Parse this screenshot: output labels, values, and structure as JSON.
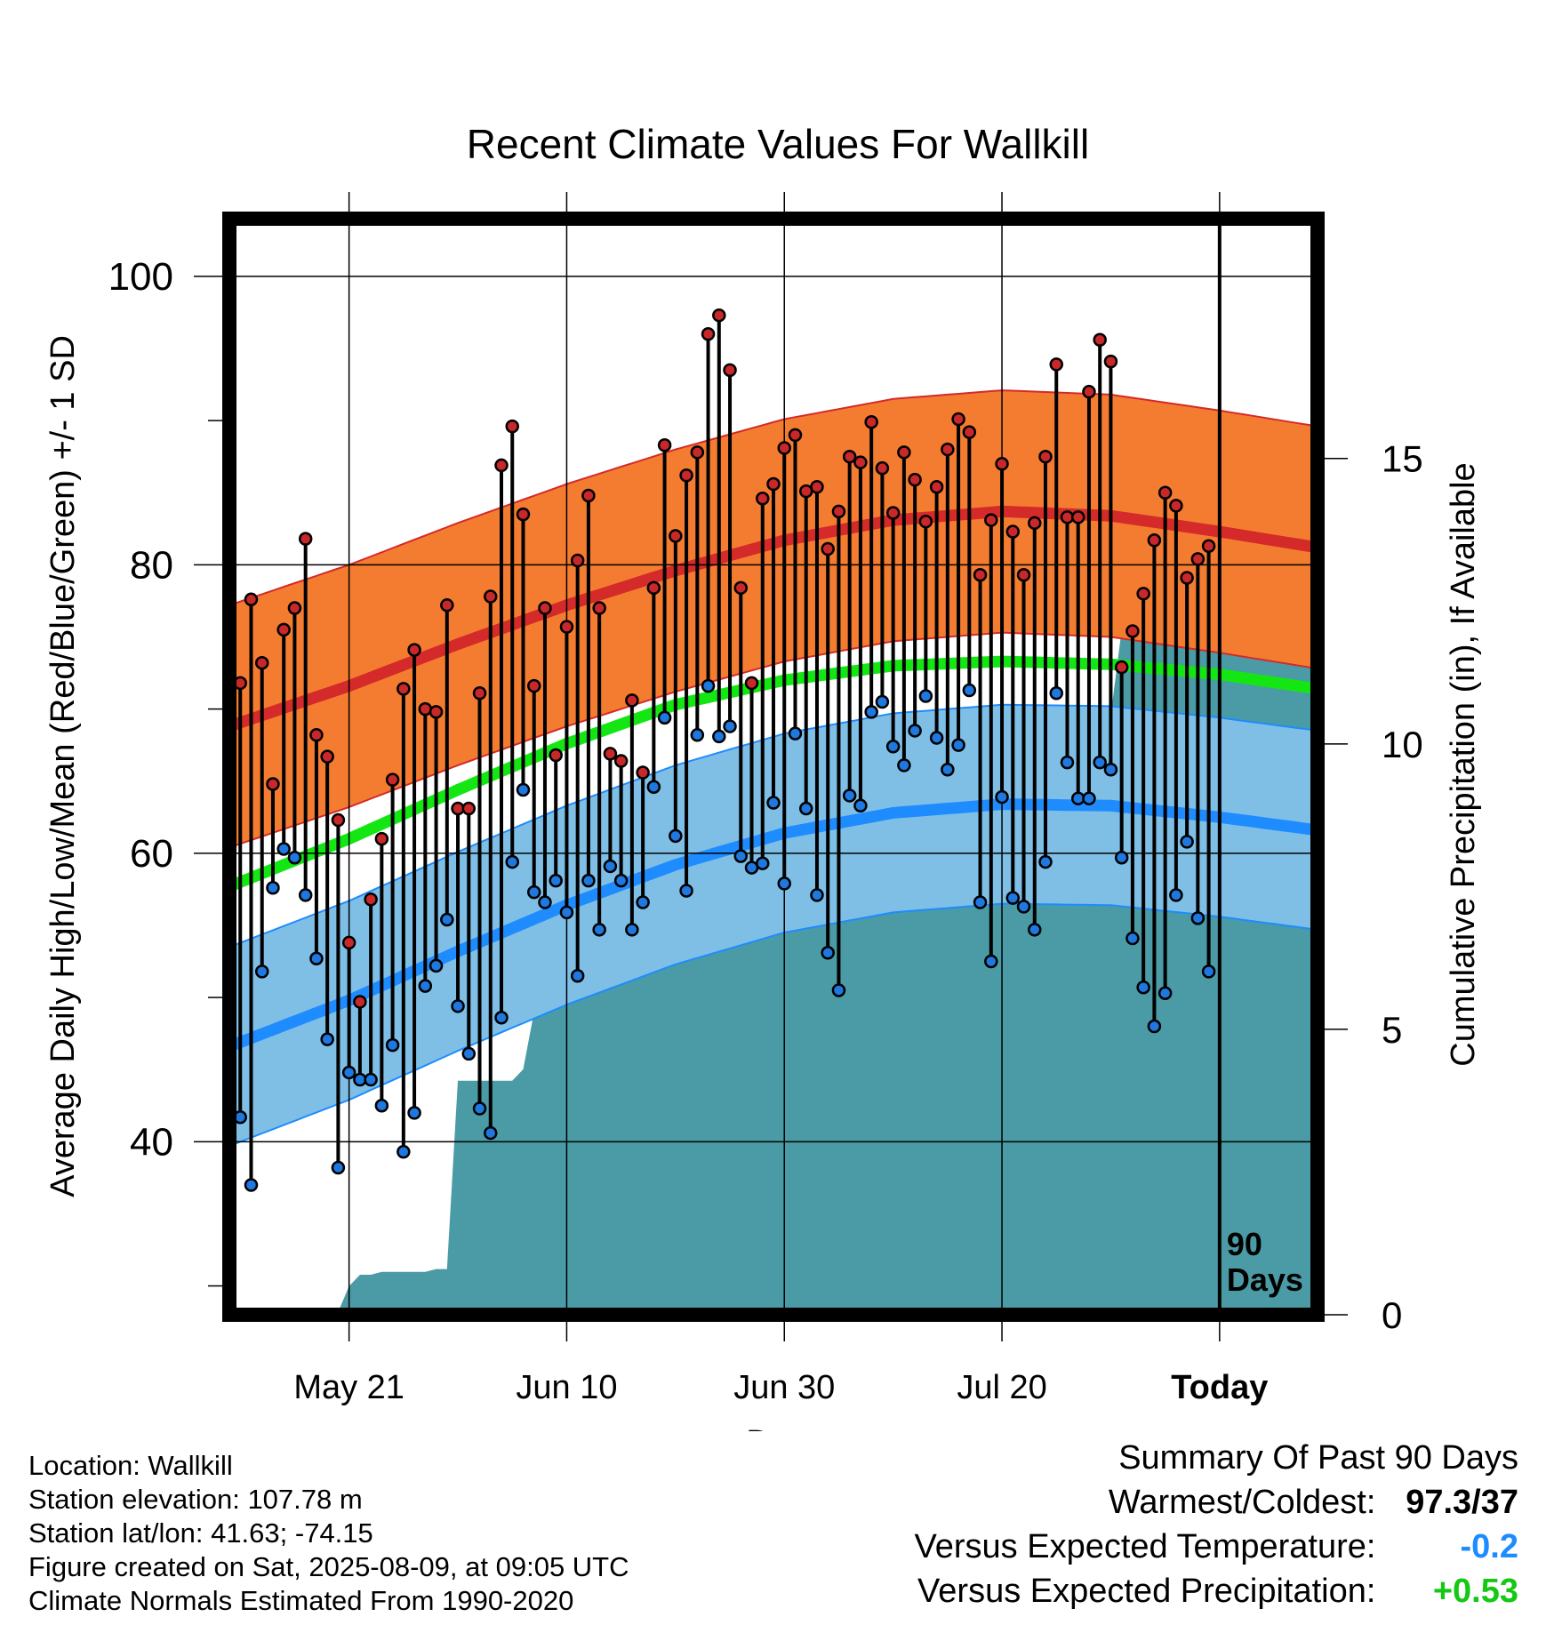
{
  "chart_data": {
    "type": "line",
    "title": "Recent Climate Values For Wallkill",
    "xlabel": "Day",
    "ylabel": "Average Daily High/Low/Mean (Red/Blue/Green) +/- 1 SD",
    "y2label": "Cumulative Precipitation (in), If Available",
    "ylim": [
      28,
      104
    ],
    "y2lim": [
      0,
      19.2
    ],
    "yticks": [
      "40",
      "60",
      "80",
      "100"
    ],
    "y2ticks": [
      "0",
      "5",
      "10",
      "15"
    ],
    "xticks": [
      {
        "label": "May 21",
        "day": 10
      },
      {
        "label": "Jun 10",
        "day": 30
      },
      {
        "label": "Jun 30",
        "day": 50
      },
      {
        "label": "Jul 20",
        "day": 70
      },
      {
        "label": "Today",
        "day": 90
      }
    ],
    "xrange": [
      -1,
      99
    ],
    "today_label": "90\nDays",
    "grid": true,
    "colors": {
      "high_band": "#f47c30",
      "high_line": "#d42a2a",
      "low_band": "#7fbfe6",
      "low_line": "#1e8cff",
      "mean_line": "#14e614",
      "precip": "#4a9ba5",
      "high_dot": "#c8282a",
      "low_dot": "#1e78e0"
    },
    "normals": {
      "high": [
        [
          -1,
          68.8
        ],
        [
          10,
          71.6
        ],
        [
          20,
          74.5
        ],
        [
          30,
          77.2
        ],
        [
          40,
          79.6
        ],
        [
          50,
          81.7
        ],
        [
          60,
          83.1
        ],
        [
          70,
          83.7
        ],
        [
          80,
          83.4
        ],
        [
          90,
          82.3
        ],
        [
          99,
          81.2
        ]
      ],
      "mean": [
        [
          -1,
          57.7
        ],
        [
          10,
          61.0
        ],
        [
          20,
          64.4
        ],
        [
          30,
          67.6
        ],
        [
          40,
          70.3
        ],
        [
          50,
          72.0
        ],
        [
          60,
          73.0
        ],
        [
          70,
          73.3
        ],
        [
          80,
          73.1
        ],
        [
          90,
          72.4
        ],
        [
          99,
          71.4
        ]
      ],
      "low": [
        [
          -1,
          46.6
        ],
        [
          10,
          49.8
        ],
        [
          20,
          53.2
        ],
        [
          30,
          56.4
        ],
        [
          40,
          59.2
        ],
        [
          50,
          61.4
        ],
        [
          60,
          62.8
        ],
        [
          70,
          63.4
        ],
        [
          80,
          63.3
        ],
        [
          90,
          62.5
        ],
        [
          99,
          61.6
        ]
      ],
      "sd_high": 8.4,
      "sd_low": 6.9
    },
    "series": [
      {
        "name": "High",
        "x": [
          0,
          1,
          2,
          3,
          4,
          5,
          6,
          7,
          8,
          9,
          10,
          11,
          12,
          13,
          14,
          15,
          16,
          17,
          18,
          19,
          20,
          21,
          22,
          23,
          24,
          25,
          26,
          27,
          28,
          29,
          30,
          31,
          32,
          33,
          34,
          35,
          36,
          37,
          38,
          39,
          40,
          41,
          42,
          43,
          44,
          45,
          46,
          47,
          48,
          49,
          50,
          51,
          52,
          53,
          54,
          55,
          56,
          57,
          58,
          59,
          60,
          61,
          62,
          63,
          64,
          65,
          66,
          67,
          68,
          69,
          70,
          71,
          72,
          73,
          74,
          75,
          76,
          77,
          78,
          79,
          80,
          81,
          82,
          83,
          84,
          85,
          86,
          87,
          88,
          89
        ],
        "values": [
          71.8,
          77.6,
          73.2,
          64.8,
          75.5,
          77.0,
          81.8,
          68.2,
          66.7,
          62.3,
          53.8,
          49.7,
          56.8,
          61.0,
          65.1,
          71.4,
          74.1,
          70.0,
          69.8,
          77.2,
          63.1,
          63.1,
          71.1,
          77.8,
          86.9,
          89.6,
          83.5,
          71.6,
          77.0,
          66.8,
          75.7,
          80.3,
          84.8,
          77.0,
          66.9,
          66.4,
          70.6,
          65.6,
          78.4,
          88.3,
          82.0,
          86.2,
          87.8,
          96.0,
          97.3,
          93.5,
          78.4,
          71.8,
          84.6,
          85.6,
          88.1,
          89.0,
          85.1,
          85.4,
          81.1,
          83.7,
          87.5,
          87.1,
          89.9,
          86.7,
          83.6,
          87.8,
          85.9,
          83.0,
          85.4,
          88.0,
          90.1,
          89.2,
          79.3,
          83.1,
          87.0,
          82.3,
          79.3,
          82.9,
          87.5,
          93.9,
          83.3,
          83.3,
          92.0,
          95.6,
          94.1,
          72.9,
          75.4,
          78.0,
          81.7,
          85.0,
          84.1,
          79.1,
          80.4,
          81.3
        ]
      },
      {
        "name": "Low",
        "x": [
          0,
          1,
          2,
          3,
          4,
          5,
          6,
          7,
          8,
          9,
          10,
          11,
          12,
          13,
          14,
          15,
          16,
          17,
          18,
          19,
          20,
          21,
          22,
          23,
          24,
          25,
          26,
          27,
          28,
          29,
          30,
          31,
          32,
          33,
          34,
          35,
          36,
          37,
          38,
          39,
          40,
          41,
          42,
          43,
          44,
          45,
          46,
          47,
          48,
          49,
          50,
          51,
          52,
          53,
          54,
          55,
          56,
          57,
          58,
          59,
          60,
          61,
          62,
          63,
          64,
          65,
          66,
          67,
          68,
          69,
          70,
          71,
          72,
          73,
          74,
          75,
          76,
          77,
          78,
          79,
          80,
          81,
          82,
          83,
          84,
          85,
          86,
          87,
          88,
          89
        ],
        "values": [
          41.7,
          37.0,
          51.8,
          57.6,
          60.3,
          59.7,
          57.1,
          52.7,
          47.1,
          38.2,
          44.8,
          44.3,
          44.3,
          42.5,
          46.7,
          39.3,
          42.0,
          50.8,
          52.2,
          55.4,
          49.4,
          46.1,
          42.3,
          40.6,
          48.6,
          59.4,
          64.4,
          57.3,
          56.6,
          58.1,
          55.9,
          51.5,
          58.1,
          54.7,
          59.1,
          58.1,
          54.7,
          56.6,
          64.6,
          69.4,
          61.2,
          57.4,
          68.2,
          71.6,
          68.1,
          68.8,
          59.8,
          59.0,
          59.3,
          63.5,
          57.9,
          68.3,
          63.1,
          57.1,
          53.1,
          50.5,
          64.0,
          63.3,
          69.8,
          70.5,
          67.4,
          66.1,
          68.5,
          70.9,
          68.0,
          65.8,
          67.5,
          71.3,
          56.6,
          52.5,
          63.9,
          56.9,
          56.3,
          54.7,
          59.4,
          71.1,
          66.3,
          63.8,
          63.8,
          66.3,
          65.8,
          59.7,
          54.1,
          50.7,
          48.0,
          50.3,
          57.1,
          60.8,
          55.5,
          51.8
        ]
      },
      {
        "name": "Precipitation",
        "x": [
          0,
          1,
          2,
          3,
          4,
          5,
          6,
          7,
          8,
          9,
          10,
          11,
          12,
          13,
          14,
          15,
          16,
          17,
          18,
          19,
          20,
          21,
          22,
          23,
          24,
          25,
          26,
          27,
          28,
          29,
          30,
          31,
          32,
          33,
          34,
          35,
          36,
          37,
          38,
          39,
          40,
          41,
          42,
          43,
          44,
          45,
          46,
          47,
          48,
          49,
          50,
          51,
          52,
          53,
          54,
          55,
          56,
          57,
          58,
          59,
          60,
          61,
          62,
          63,
          64,
          65,
          66,
          67,
          68,
          69,
          70,
          71,
          72,
          73,
          74,
          75,
          76,
          77,
          78,
          79,
          80,
          81,
          82,
          83,
          84,
          85,
          86,
          87,
          88,
          89
        ],
        "values": [
          0,
          0,
          0,
          0.05,
          0.05,
          0.05,
          0.05,
          0.05,
          0.05,
          0.05,
          0.5,
          0.7,
          0.7,
          0.75,
          0.75,
          0.75,
          0.75,
          0.75,
          0.8,
          0.8,
          4.1,
          4.1,
          4.1,
          4.1,
          4.1,
          4.1,
          4.3,
          5.3,
          5.4,
          5.6,
          6.3,
          6.3,
          6.3,
          6.3,
          6.4,
          6.4,
          6.9,
          7.4,
          8.0,
          8.0,
          8.0,
          8.0,
          8.1,
          8.2,
          8.2,
          8.2,
          8.4,
          8.8,
          8.8,
          8.8,
          8.8,
          9.4,
          9.4,
          9.7,
          9.7,
          9.7,
          9.8,
          9.8,
          9.8,
          9.8,
          9.8,
          9.8,
          9.8,
          9.8,
          9.8,
          10.0,
          10.0,
          10.0,
          10.0,
          10.0,
          10.0,
          10.0,
          10.0,
          10.0,
          10.0,
          10.0,
          10.0,
          10.5,
          10.5,
          10.5,
          10.5,
          12.0,
          12.0,
          12.0,
          12.0,
          12.0,
          12.0,
          12.0,
          12.0,
          12.0
        ]
      }
    ]
  },
  "info": {
    "location": "Location: Wallkill",
    "elevation": "Station elevation: 107.78 m",
    "latlon": "Station lat/lon: 41.63; -74.15",
    "created": "Figure created on Sat, 2025-08-09, at 09:05 UTC",
    "normals": "Climate Normals Estimated From 1990-2020"
  },
  "summary": {
    "title": "Summary Of Past 90 Days",
    "warm_cold_label": "Warmest/Coldest:",
    "warm_cold_value": "97.3/37",
    "temp_label": "Versus Expected Temperature:",
    "temp_value": "-0.2",
    "temp_color": "#1e8cff",
    "precip_label": "Versus Expected Precipitation:",
    "precip_value": "+0.53",
    "precip_color": "#14c814"
  }
}
